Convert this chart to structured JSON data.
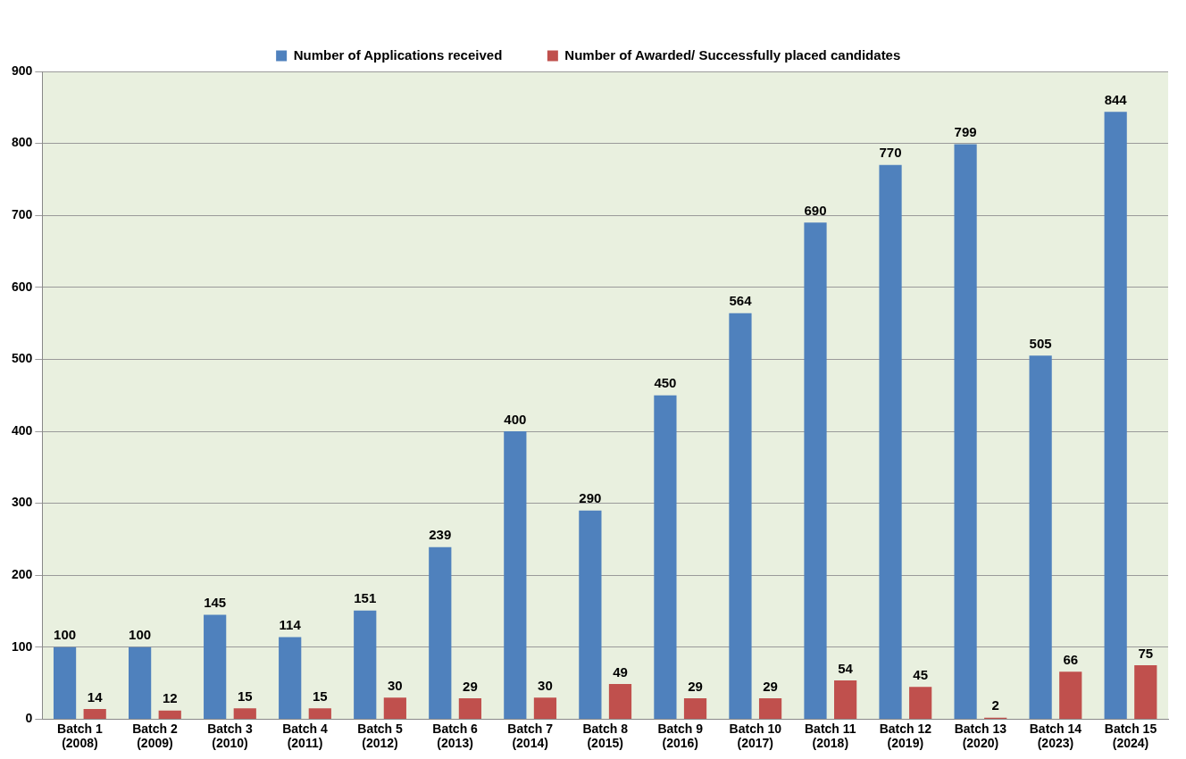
{
  "chart_data": {
    "type": "bar",
    "categories": [
      "Batch 1 (2008)",
      "Batch 2 (2009)",
      "Batch 3 (2010)",
      "Batch 4 (2011)",
      "Batch 5 (2012)",
      "Batch 6 (2013)",
      "Batch 7 (2014)",
      "Batch 8 (2015)",
      "Batch 9 (2016)",
      "Batch 10 (2017)",
      "Batch 11 (2018)",
      "Batch 12 (2019)",
      "Batch 13 (2020)",
      "Batch 14 (2023)",
      "Batch 15 (2024)"
    ],
    "series": [
      {
        "name": "Number of Applications received",
        "color": "#4f81bd",
        "values": [
          100,
          100,
          145,
          114,
          151,
          239,
          400,
          290,
          450,
          564,
          690,
          770,
          799,
          505,
          844
        ]
      },
      {
        "name": "Number of Awarded/ Successfully placed candidates",
        "color": "#c0504d",
        "values": [
          14,
          12,
          15,
          15,
          30,
          29,
          30,
          49,
          29,
          29,
          54,
          45,
          2,
          66,
          75
        ]
      }
    ],
    "ylim": [
      0,
      900
    ],
    "yticks": [
      0,
      100,
      200,
      300,
      400,
      500,
      600,
      700,
      800,
      900
    ],
    "grid": "y",
    "legend": "top",
    "data_labels": true
  }
}
